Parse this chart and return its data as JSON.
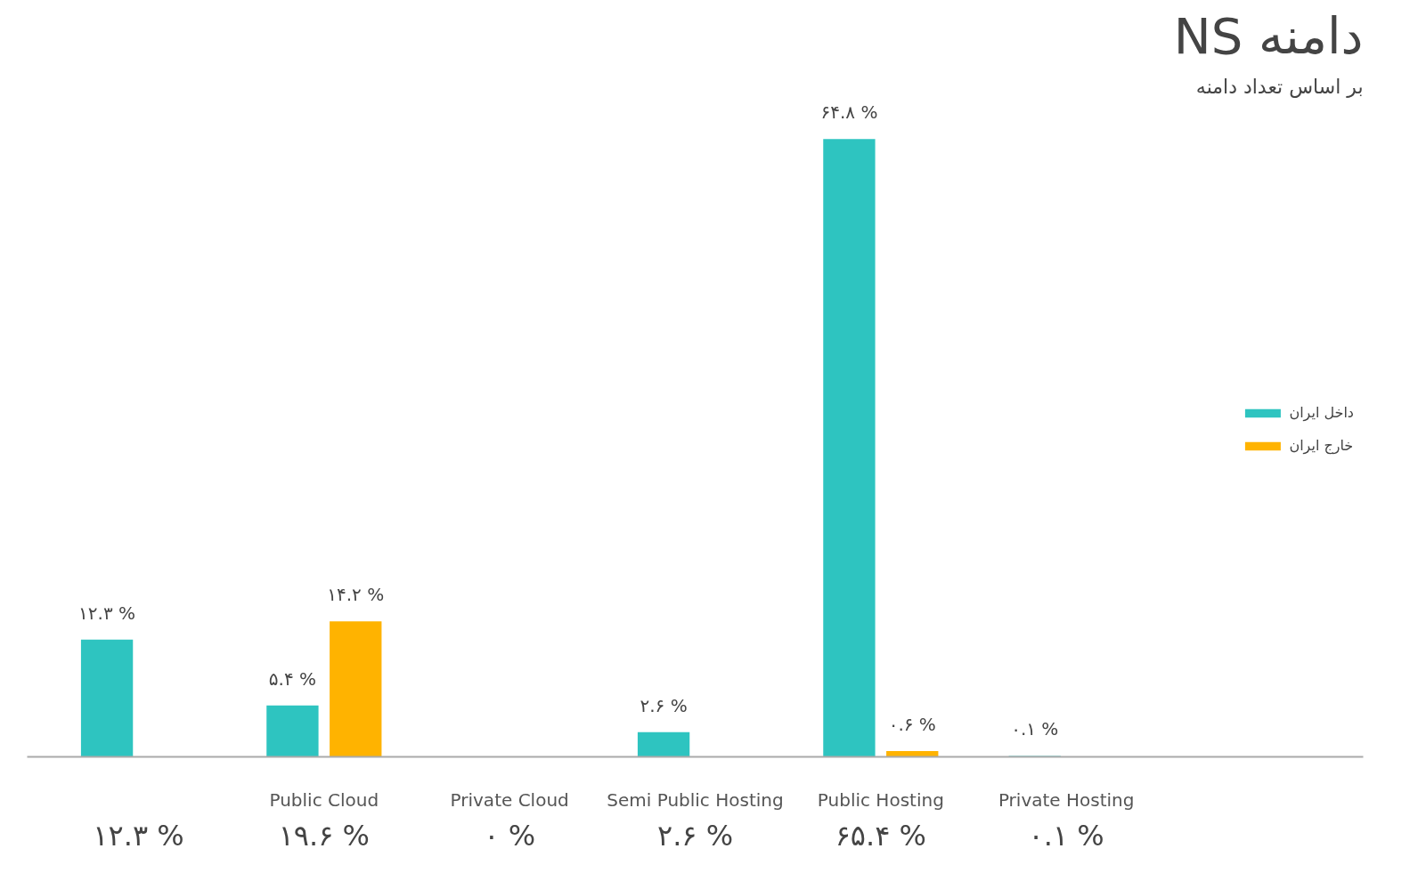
{
  "chart_data": {
    "type": "bar",
    "title": "NS دامنه",
    "subtitle": "بر اساس تعداد دامنه",
    "categories": [
      null,
      "Public Cloud",
      "Private Cloud",
      "Semi Public Hosting",
      "Public Hosting",
      "Private Hosting"
    ],
    "series": [
      {
        "name": "داخل ایران",
        "color": "#2ec4c0",
        "values": [
          12.3,
          5.4,
          null,
          2.6,
          64.8,
          0.1
        ],
        "value_labels": [
          "۱۲.۳ %",
          "۵.۴ %",
          null,
          "۲.۶ %",
          "۶۴.۸ %",
          "۰.۱ %"
        ]
      },
      {
        "name": "خارج ایران",
        "color": "#ffb300",
        "values": [
          null,
          14.2,
          null,
          null,
          0.6,
          null
        ],
        "value_labels": [
          null,
          "۱۴.۲ %",
          null,
          null,
          "۰.۶ %",
          null
        ]
      }
    ],
    "totals": [
      "۱۲.۳ %",
      "۱۹.۶ %",
      "۰ %",
      "۲.۶ %",
      "۶۵.۴ %",
      "۰.۱ %"
    ],
    "grid": false,
    "legend": "right"
  }
}
